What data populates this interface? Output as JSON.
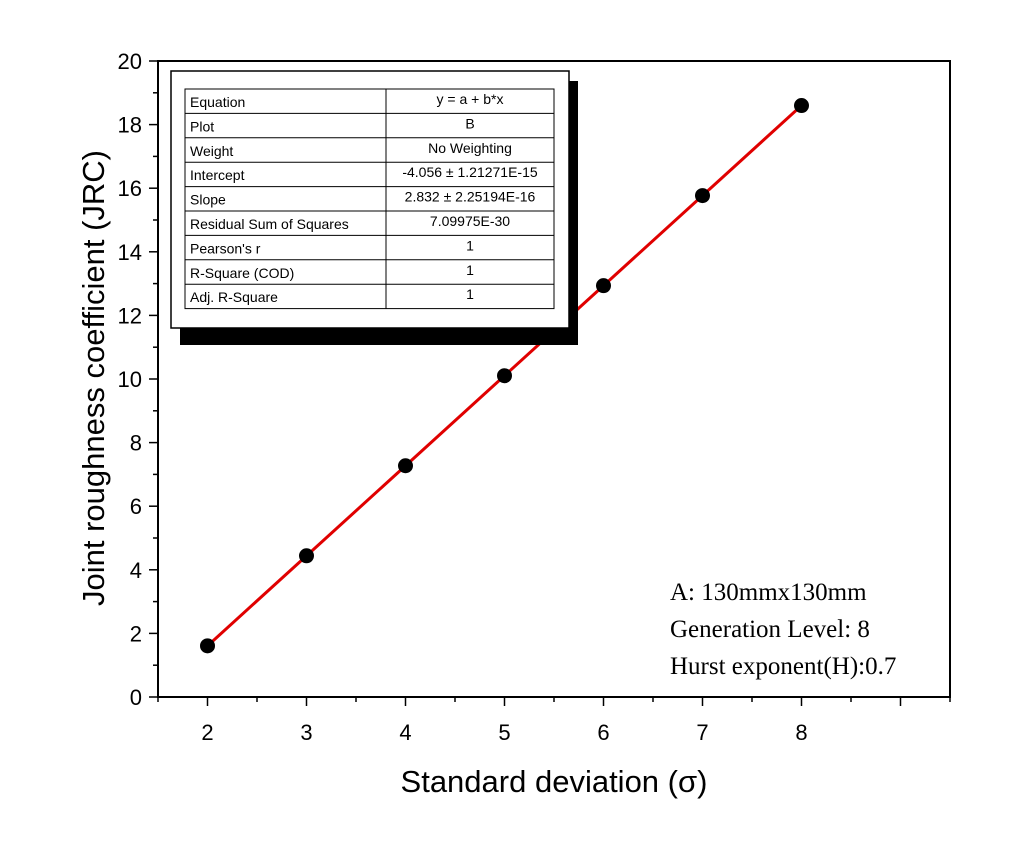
{
  "chart_data": {
    "type": "scatter",
    "xlabel": "Standard deviation (σ)",
    "ylabel": "Joint roughness coefficient (JRC)",
    "xlim": [
      1.5,
      9.5
    ],
    "ylim": [
      0,
      20
    ],
    "x_ticks": [
      2,
      3,
      4,
      5,
      6,
      7,
      8
    ],
    "y_ticks": [
      0,
      2,
      4,
      6,
      8,
      10,
      12,
      14,
      16,
      18,
      20
    ],
    "series": [
      {
        "name": "B",
        "marker": "circle",
        "color": "#000000",
        "x": [
          2,
          3,
          4,
          5,
          6,
          7,
          8
        ],
        "y": [
          1.608,
          4.44,
          7.272,
          10.104,
          12.936,
          15.768,
          18.6
        ]
      }
    ],
    "fit_line": {
      "color": "#e00000",
      "intercept": -4.056,
      "slope": 2.832,
      "x_range": [
        2,
        8
      ]
    },
    "fit_table": [
      {
        "label": "Equation",
        "value": "y = a + b*x"
      },
      {
        "label": "Plot",
        "value": "B"
      },
      {
        "label": "Weight",
        "value": "No Weighting"
      },
      {
        "label": "Intercept",
        "value": "-4.056 ± 1.21271E-15"
      },
      {
        "label": "Slope",
        "value": "2.832 ± 2.25194E-16"
      },
      {
        "label": "Residual Sum of Squares",
        "value": "7.09975E-30"
      },
      {
        "label": "Pearson's r",
        "value": "1"
      },
      {
        "label": "R-Square (COD)",
        "value": "1"
      },
      {
        "label": "Adj. R-Square",
        "value": "1"
      }
    ],
    "annotations": [
      "A: 130mmx130mm",
      "Generation Level: 8",
      "Hurst exponent(H):0.7"
    ]
  }
}
